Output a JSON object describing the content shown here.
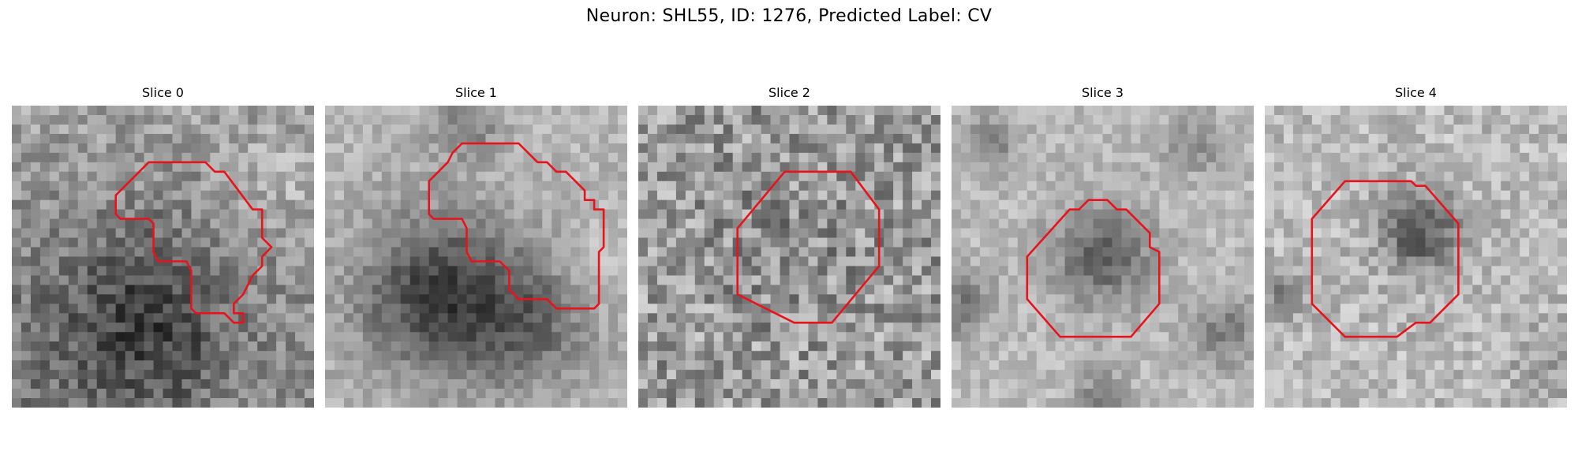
{
  "figure": {
    "title": "Neuron: SHL55, ID: 1276, Predicted Label: CV",
    "panels": [
      {
        "title": "Slice 0"
      },
      {
        "title": "Slice 1"
      },
      {
        "title": "Slice 2"
      },
      {
        "title": "Slice 3"
      },
      {
        "title": "Slice 4"
      }
    ]
  },
  "colors": {
    "contour": "#e8131b",
    "image_colormap": "gray"
  }
}
